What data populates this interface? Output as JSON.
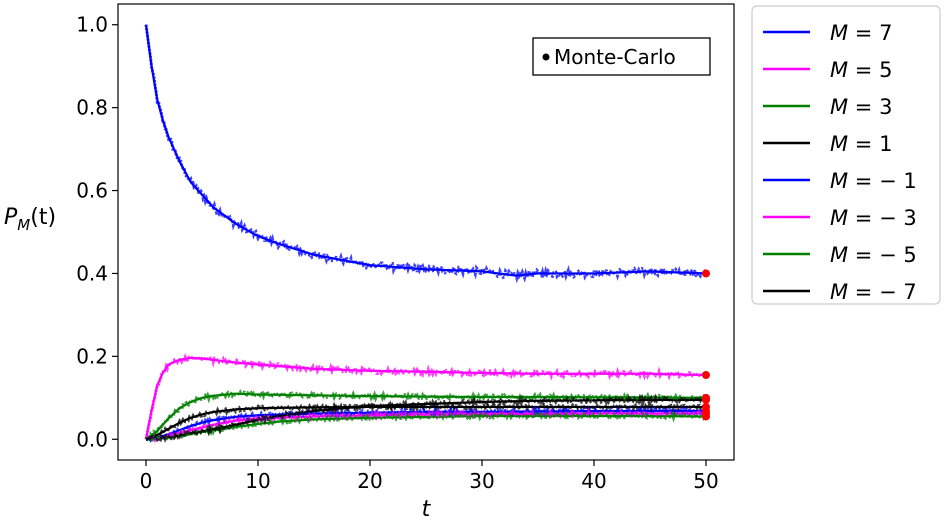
{
  "chart_data": {
    "type": "line",
    "xlabel": "t",
    "ylabel": "P_M(t)",
    "xlim": [
      -2.5,
      52.5
    ],
    "ylim": [
      -0.05,
      1.05
    ],
    "xticks": [
      0,
      10,
      20,
      30,
      40,
      50
    ],
    "yticks": [
      0.0,
      0.2,
      0.4,
      0.6,
      0.8,
      1.0
    ],
    "xtick_labels": [
      "0",
      "10",
      "20",
      "30",
      "40",
      "50"
    ],
    "ytick_labels": [
      "0.0",
      "0.2",
      "0.4",
      "0.6",
      "0.8",
      "1.0"
    ],
    "grid": false,
    "legend_position": "outside-right",
    "annotation": "Monte-Carlo",
    "final_marker_color": "#ff0000",
    "series": [
      {
        "name": "M = 7",
        "color": "#0000ff",
        "t": [
          0,
          0.5,
          1,
          1.5,
          2,
          3,
          4,
          5,
          6,
          8,
          10,
          12,
          15,
          18,
          20,
          25,
          30,
          33,
          35,
          40,
          45,
          50
        ],
        "values": [
          1.0,
          0.9,
          0.82,
          0.77,
          0.73,
          0.67,
          0.62,
          0.59,
          0.56,
          0.52,
          0.49,
          0.47,
          0.445,
          0.43,
          0.42,
          0.41,
          0.405,
          0.395,
          0.4,
          0.4,
          0.405,
          0.4
        ]
      },
      {
        "name": "M = 5",
        "color": "#ff00ff",
        "t": [
          0,
          0.5,
          1,
          1.5,
          2,
          3,
          4,
          5,
          7,
          10,
          15,
          20,
          25,
          30,
          35,
          40,
          45,
          50
        ],
        "values": [
          0.0,
          0.07,
          0.13,
          0.16,
          0.18,
          0.192,
          0.196,
          0.195,
          0.188,
          0.18,
          0.17,
          0.165,
          0.163,
          0.16,
          0.158,
          0.158,
          0.158,
          0.155
        ]
      },
      {
        "name": "M = 3",
        "color": "#008000",
        "t": [
          0,
          1,
          2,
          3,
          4,
          5,
          6,
          8,
          10,
          15,
          20,
          25,
          30,
          35,
          40,
          45,
          50
        ],
        "values": [
          0.0,
          0.02,
          0.05,
          0.075,
          0.09,
          0.1,
          0.105,
          0.11,
          0.108,
          0.106,
          0.104,
          0.103,
          0.102,
          0.102,
          0.101,
          0.101,
          0.1
        ]
      },
      {
        "name": "M = 1",
        "color": "#000000",
        "t": [
          0,
          1,
          2,
          3,
          4,
          5,
          6,
          8,
          10,
          15,
          20,
          25,
          30,
          35,
          40,
          45,
          50
        ],
        "values": [
          0.0,
          0.01,
          0.025,
          0.04,
          0.052,
          0.06,
          0.066,
          0.072,
          0.075,
          0.077,
          0.078,
          0.078,
          0.078,
          0.078,
          0.078,
          0.078,
          0.078
        ]
      },
      {
        "name": "M = −1",
        "color": "#0000ff",
        "t": [
          0,
          1,
          2,
          3,
          4,
          5,
          6,
          8,
          10,
          15,
          20,
          25,
          30,
          35,
          40,
          45,
          50
        ],
        "values": [
          0.0,
          0.004,
          0.012,
          0.022,
          0.032,
          0.04,
          0.046,
          0.054,
          0.058,
          0.062,
          0.064,
          0.066,
          0.066,
          0.067,
          0.068,
          0.068,
          0.068
        ]
      },
      {
        "name": "M = −3",
        "color": "#ff00ff",
        "t": [
          0,
          1,
          2,
          3,
          4,
          6,
          8,
          10,
          15,
          20,
          25,
          30,
          35,
          40,
          45,
          50
        ],
        "values": [
          0.0,
          0.002,
          0.008,
          0.015,
          0.022,
          0.035,
          0.045,
          0.05,
          0.055,
          0.058,
          0.06,
          0.061,
          0.061,
          0.062,
          0.062,
          0.062
        ]
      },
      {
        "name": "M = −5",
        "color": "#008000",
        "t": [
          0,
          1,
          2,
          3,
          4,
          6,
          8,
          10,
          12,
          15,
          20,
          25,
          30,
          35,
          40,
          45,
          50
        ],
        "values": [
          0.0,
          0.001,
          0.004,
          0.008,
          0.013,
          0.022,
          0.03,
          0.037,
          0.043,
          0.048,
          0.052,
          0.054,
          0.056,
          0.056,
          0.056,
          0.056,
          0.055
        ]
      },
      {
        "name": "M = −7",
        "color": "#000000",
        "t": [
          0,
          1,
          2,
          3,
          4,
          6,
          8,
          10,
          12,
          15,
          18,
          20,
          25,
          30,
          35,
          40,
          45,
          50
        ],
        "values": [
          0.0,
          0.002,
          0.005,
          0.009,
          0.014,
          0.024,
          0.035,
          0.047,
          0.057,
          0.068,
          0.076,
          0.08,
          0.085,
          0.09,
          0.093,
          0.094,
          0.095,
          0.095
        ]
      }
    ]
  }
}
